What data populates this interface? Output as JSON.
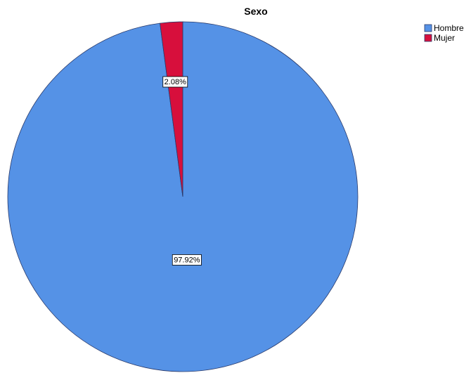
{
  "chart_data": {
    "type": "pie",
    "title": "Sexo",
    "slices": [
      {
        "name": "Hombre",
        "value": 97.92,
        "label": "97.92%",
        "color": "#5592e6"
      },
      {
        "name": "Mujer",
        "value": 2.08,
        "label": "2.08%",
        "color": "#d70f3c"
      }
    ],
    "legend_position": "top-right"
  }
}
